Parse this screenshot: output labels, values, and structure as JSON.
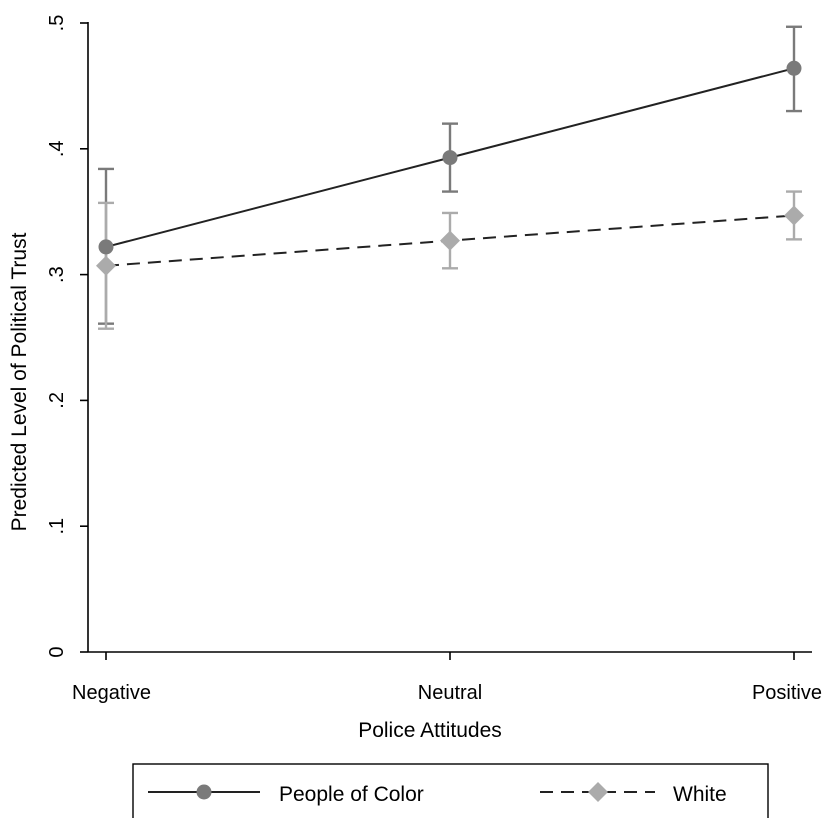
{
  "chart_data": {
    "type": "line",
    "xlabel": "Police Attitudes",
    "ylabel": "Predicted Level of Political Trust",
    "categories": [
      "Negative",
      "Neutral",
      "Positive"
    ],
    "ylim": [
      0,
      0.5
    ],
    "yticks": [
      0,
      0.1,
      0.2,
      0.3,
      0.4,
      0.5
    ],
    "ytick_labels": [
      "0",
      ".1",
      ".2",
      ".3",
      ".4",
      ".5"
    ],
    "grid": false,
    "legend_position": "bottom",
    "series": [
      {
        "name": "People of Color",
        "values": [
          0.322,
          0.393,
          0.464
        ],
        "ci_low": [
          0.261,
          0.366,
          0.43
        ],
        "ci_high": [
          0.384,
          0.42,
          0.497
        ],
        "color": "#7a7a7a",
        "line_style": "solid",
        "line_color": "#222222",
        "marker": "circle"
      },
      {
        "name": "White",
        "values": [
          0.307,
          0.327,
          0.347
        ],
        "ci_low": [
          0.257,
          0.305,
          0.328
        ],
        "ci_high": [
          0.357,
          0.349,
          0.366
        ],
        "color": "#ababab",
        "line_style": "dashed",
        "line_color": "#222222",
        "marker": "diamond"
      }
    ]
  }
}
